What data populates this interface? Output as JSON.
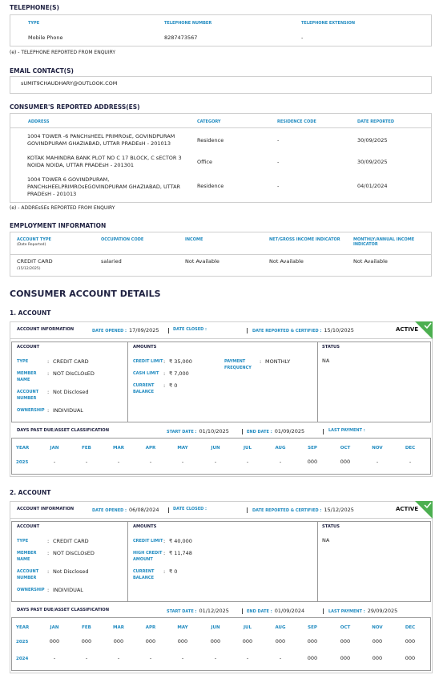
{
  "telephones": {
    "title": "TELEPHONE(S)",
    "headers": [
      "TYPE",
      "TELEPHONE NUMBER",
      "TELEPHONE EXTENSION"
    ],
    "rows": [
      [
        "Mobile Phone",
        "8287473567",
        "-"
      ]
    ],
    "note": "(e) - TELEPHONE REPORTED FROM ENQUIRY"
  },
  "emails": {
    "title": "EMAIL CONTACT(S)",
    "rows": [
      "sUMIT9CHAUDHARY@OUTLOOK.COM"
    ]
  },
  "addresses": {
    "title": "CONSUMER'S REPORTED ADDRESS(ES)",
    "headers": [
      "ADDRESS",
      "CATEGORY",
      "RESIDENCE CODE",
      "DATE REPORTED"
    ],
    "rows": [
      [
        "1004 TOWER -6 PANCHsHEEL PRIMROsE, GOVINDPURAM GOVINDPURAM GHAZIABAD, UTTAR PRADEsH - 201013",
        "Residence",
        "-",
        "30/09/2025"
      ],
      [
        "KOTAK MAHINDRA BANK PLOT NO C 17 BLOCK, C sECTOR 3 NOIDA NOIDA, UTTAR PRADEsH - 201301",
        "Office",
        "-",
        "30/09/2025"
      ],
      [
        "1004 TOWER 6 GOVINDPURAM, PANCHsHEELPRIMROsEGOVINDPURAM GHAZIABAD, UTTAR PRADEsH - 201013",
        "Residence",
        "-",
        "04/01/2024"
      ]
    ],
    "note": "(e) - ADDREsSEs REPORTED FROM ENQUIRY"
  },
  "employment": {
    "title": "EMPLOYMENT INFORMATION",
    "headers": [
      "ACCOUNT TYPE",
      "OCCUPATION CODE",
      "INCOME",
      "NET/GROSS INCOME INDICATOR",
      "MONTHLY/ANNUAL INCOME INDICATOR"
    ],
    "header_note": "(Date Reported)",
    "row": [
      "CREDIT CARD",
      "salaried",
      "Not Available",
      "Not Available",
      "Not Available"
    ],
    "row_date": "(15/12/2025)"
  },
  "account_details": {
    "title": "CONSUMER ACCOUNT DETAILS",
    "accounts": [
      {
        "heading": "1. ACCOUNT",
        "info_title": "ACCOUNT INFORMATION",
        "date_opened_label": "DATE OPENED :",
        "date_opened": "17/09/2025",
        "date_closed_label": "DATE CLOSED :",
        "date_reported_label": "DATE REPORTED & CERTIFIED :",
        "date_reported": "15/10/2025",
        "state": "ACTIVE",
        "account_title": "ACCOUNT",
        "account_fields": [
          {
            "label": "TYPE",
            "value": "CREDIT CARD"
          },
          {
            "label": "MEMBER NAME",
            "value": "NOT DIsCLOsED"
          },
          {
            "label": "ACCOUNT NUMBER",
            "value": "Not Disclosed"
          },
          {
            "label": "OWNERSHIP",
            "value": "INDIVIDUAL"
          }
        ],
        "amounts_title": "AMOUNTS",
        "amount_fields": [
          {
            "label": "CREDIT LIMIT",
            "value": "₹ 35,000"
          },
          {
            "label": "CASH LIMIT",
            "value": "₹ 7,000"
          },
          {
            "label": "CURRENT BALANCE",
            "value": "₹ 0"
          }
        ],
        "payment": {
          "label": "PAYMENT FREQUENCY",
          "value": "MONTHLY"
        },
        "status_title": "STATUS",
        "status": "NA",
        "dpd_title": "DAYS PAST DUE/ASSET CLASSIFICATION",
        "start_label": "START DATE :",
        "start": "01/10/2025",
        "end_label": "END DATE :",
        "end": "01/09/2025",
        "last_payment_label": "LAST PAYMENT :",
        "months": [
          "YEAR",
          "JAN",
          "FEB",
          "MAR",
          "APR",
          "MAY",
          "JUN",
          "JUL",
          "AUG",
          "SEP",
          "OCT",
          "NOV",
          "DEC"
        ],
        "rows": [
          [
            "2025",
            "-",
            "-",
            "-",
            "-",
            "-",
            "-",
            "-",
            "-",
            "000",
            "000",
            "-",
            "-"
          ]
        ]
      },
      {
        "heading": "2. ACCOUNT",
        "info_title": "ACCOUNT INFORMATION",
        "date_opened_label": "DATE OPENED :",
        "date_opened": "06/08/2024",
        "date_closed_label": "DATE CLOSED :",
        "date_reported_label": "DATE REPORTED & CERTIFIED :",
        "date_reported": "15/12/2025",
        "state": "ACTIVE",
        "account_title": "ACCOUNT",
        "account_fields": [
          {
            "label": "TYPE",
            "value": "CREDIT CARD"
          },
          {
            "label": "MEMBER NAME",
            "value": "NOT DIsCLOsED"
          },
          {
            "label": "ACCOUNT NUMBER",
            "value": "Not Disclosed"
          },
          {
            "label": "OWNERSHIP",
            "value": "INDIVIDUAL"
          }
        ],
        "amounts_title": "AMOUNTS",
        "amount_fields": [
          {
            "label": "CREDIT LIMIT",
            "value": "₹ 40,000"
          },
          {
            "label": "HIGH CREDIT AMOUNT",
            "value": "₹ 11,748"
          },
          {
            "label": "CURRENT BALANCE",
            "value": "₹ 0"
          }
        ],
        "status_title": "STATUS",
        "status": "NA",
        "dpd_title": "DAYS PAST DUE/ASSET CLASSIFICATION",
        "start_label": "START DATE :",
        "start": "01/12/2025",
        "end_label": "END DATE :",
        "end": "01/09/2024",
        "last_payment_label": "LAST PAYMENT :",
        "last_payment": "29/09/2025",
        "months": [
          "YEAR",
          "JAN",
          "FEB",
          "MAR",
          "APR",
          "MAY",
          "JUN",
          "JUL",
          "AUG",
          "SEP",
          "OCT",
          "NOV",
          "DEC"
        ],
        "rows": [
          [
            "2025",
            "000",
            "000",
            "000",
            "000",
            "000",
            "000",
            "000",
            "000",
            "000",
            "000",
            "000",
            "000"
          ],
          [
            "2024",
            "-",
            "-",
            "-",
            "-",
            "-",
            "-",
            "-",
            "-",
            "000",
            "000",
            "000",
            "000"
          ]
        ]
      }
    ]
  }
}
